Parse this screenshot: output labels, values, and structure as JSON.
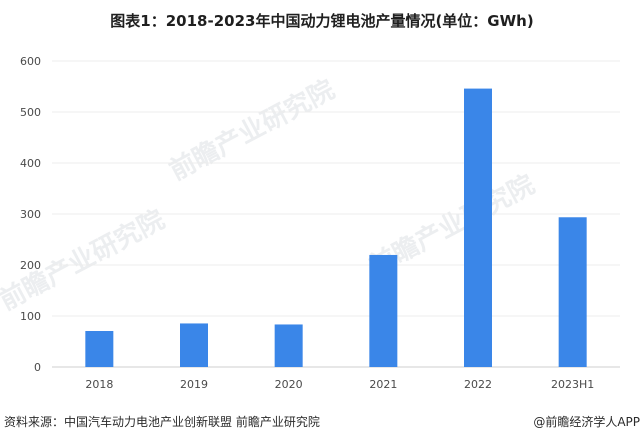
{
  "title": "图表1：2018-2023年中国动力锂电池产量情况(单位：GWh)",
  "footer": {
    "source": "资料来源：中国汽车动力电池产业创新联盟 前瞻产业研究院",
    "brand": "@前瞻经济学人APP"
  },
  "watermark_text": "前瞻产业研究院",
  "chart_data": {
    "type": "bar",
    "title": "图表1：2018-2023年中国动力锂电池产量情况(单位：GWh)",
    "categories": [
      "2018",
      "2019",
      "2020",
      "2021",
      "2022",
      "2023H1"
    ],
    "values": [
      70.6,
      85.4,
      83.4,
      219.7,
      545.9,
      293.6
    ],
    "ylim": [
      0,
      600
    ],
    "yticks": [
      "0",
      "100",
      "200",
      "300",
      "400",
      "500",
      "600"
    ],
    "bar_color": "#3a86e8",
    "grid": true,
    "legend": "none",
    "xlabel": "",
    "ylabel": ""
  }
}
